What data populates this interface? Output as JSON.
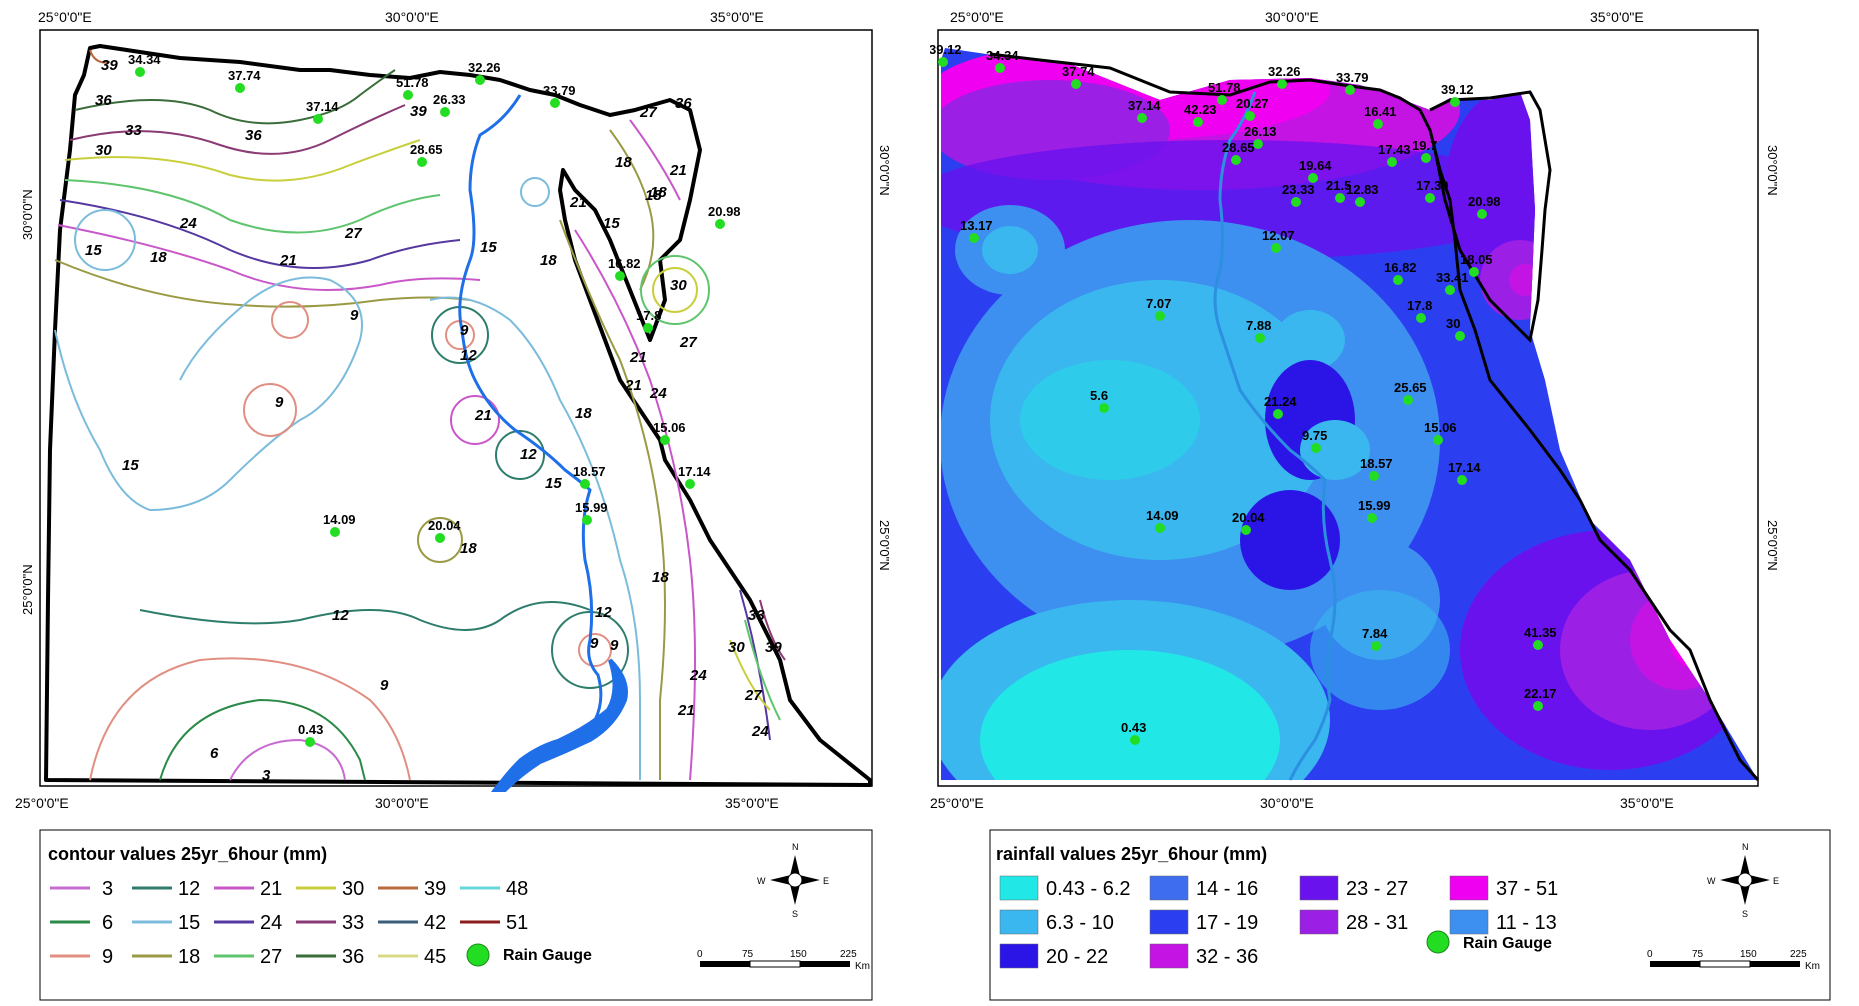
{
  "left_map": {
    "top_ticks": [
      "25°0'0\"E",
      "30°0'0\"E",
      "35°0'0\"E"
    ],
    "bottom_ticks": [
      "25°0'0\"E",
      "30°0'0\"E",
      "35°0'0\"E"
    ],
    "side_ticks": [
      "30°0'0\"N",
      "25°0'0\"N"
    ],
    "station_labels": [
      {
        "text": "34.34"
      },
      {
        "text": "37.74"
      },
      {
        "text": "37.14"
      },
      {
        "text": "51.78"
      },
      {
        "text": "32.26"
      },
      {
        "text": "33.79"
      },
      {
        "text": "26.33"
      },
      {
        "text": "28.65"
      },
      {
        "text": "20.98"
      },
      {
        "text": "16.82"
      },
      {
        "text": "17.8"
      },
      {
        "text": "15.06"
      },
      {
        "text": "17.14"
      },
      {
        "text": "18.57"
      },
      {
        "text": "15.99"
      },
      {
        "text": "14.09"
      },
      {
        "text": "20.04"
      },
      {
        "text": "0.43"
      }
    ],
    "contour_labels": [
      {
        "text": "39"
      },
      {
        "text": "36"
      },
      {
        "text": "33"
      },
      {
        "text": "30"
      },
      {
        "text": "36"
      },
      {
        "text": "39"
      },
      {
        "text": "27"
      },
      {
        "text": "24"
      },
      {
        "text": "21"
      },
      {
        "text": "18"
      },
      {
        "text": "15"
      },
      {
        "text": "18"
      },
      {
        "text": "15"
      },
      {
        "text": "9"
      },
      {
        "text": "9"
      },
      {
        "text": "12"
      },
      {
        "text": "21"
      },
      {
        "text": "9"
      },
      {
        "text": "9"
      },
      {
        "text": "15"
      },
      {
        "text": "12"
      },
      {
        "text": "15"
      },
      {
        "text": "18"
      },
      {
        "text": "18"
      },
      {
        "text": "12"
      },
      {
        "text": "12"
      },
      {
        "text": "9"
      },
      {
        "text": "9"
      },
      {
        "text": "6"
      },
      {
        "text": "3"
      },
      {
        "text": "21"
      },
      {
        "text": "15"
      },
      {
        "text": "18"
      },
      {
        "text": "18"
      },
      {
        "text": "27"
      },
      {
        "text": "36"
      },
      {
        "text": "21"
      },
      {
        "text": "18"
      },
      {
        "text": "21"
      },
      {
        "text": "30"
      },
      {
        "text": "27"
      },
      {
        "text": "21"
      },
      {
        "text": "24"
      },
      {
        "text": "18"
      },
      {
        "text": "33"
      },
      {
        "text": "30"
      },
      {
        "text": "39"
      },
      {
        "text": "27"
      },
      {
        "text": "24"
      },
      {
        "text": "21"
      },
      {
        "text": "24"
      }
    ]
  },
  "right_map": {
    "top_ticks": [
      "25°0'0\"E",
      "30°0'0\"E",
      "35°0'0\"E"
    ],
    "bottom_ticks": [
      "25°0'0\"E",
      "30°0'0\"E",
      "35°0'0\"E"
    ],
    "side_ticks": [
      "30°0'0\"N",
      "25°0'0\"N"
    ],
    "station_labels": [
      {
        "text": "39.12"
      },
      {
        "text": "34.34"
      },
      {
        "text": "37.74"
      },
      {
        "text": "37.14"
      },
      {
        "text": "42.23"
      },
      {
        "text": "51.78"
      },
      {
        "text": "32.26"
      },
      {
        "text": "20.27"
      },
      {
        "text": "26.13"
      },
      {
        "text": "28.65"
      },
      {
        "text": "33.79"
      },
      {
        "text": "16.41"
      },
      {
        "text": "39.12"
      },
      {
        "text": "17.43"
      },
      {
        "text": "19.7"
      },
      {
        "text": "17.39"
      },
      {
        "text": "19.64"
      },
      {
        "text": "23.33"
      },
      {
        "text": "21.5"
      },
      {
        "text": "12.83"
      },
      {
        "text": "20.98"
      },
      {
        "text": "13.17"
      },
      {
        "text": "12.07"
      },
      {
        "text": "16.82"
      },
      {
        "text": "33.41"
      },
      {
        "text": "18.05"
      },
      {
        "text": "17.8"
      },
      {
        "text": "30"
      },
      {
        "text": "7.07"
      },
      {
        "text": "7.88"
      },
      {
        "text": "25.65"
      },
      {
        "text": "5.6"
      },
      {
        "text": "21.24"
      },
      {
        "text": "15.06"
      },
      {
        "text": "9.75"
      },
      {
        "text": "18.57"
      },
      {
        "text": "17.14"
      },
      {
        "text": "14.09"
      },
      {
        "text": "20.04"
      },
      {
        "text": "15.99"
      },
      {
        "text": "7.84"
      },
      {
        "text": "41.35"
      },
      {
        "text": "0.43"
      },
      {
        "text": "22.17"
      }
    ]
  },
  "left_legend": {
    "title": "contour values 25yr_6hour (mm)",
    "items": [
      {
        "label": "3",
        "color": "#c86bd1"
      },
      {
        "label": "12",
        "color": "#2e7d6c"
      },
      {
        "label": "21",
        "color": "#c957c9"
      },
      {
        "label": "30",
        "color": "#c9cf3c"
      },
      {
        "label": "39",
        "color": "#b86a3e"
      },
      {
        "label": "48",
        "color": "#67d8d8"
      },
      {
        "label": "6",
        "color": "#2b8a48"
      },
      {
        "label": "15",
        "color": "#7bbcdc"
      },
      {
        "label": "24",
        "color": "#5538a0"
      },
      {
        "label": "33",
        "color": "#8a3a74"
      },
      {
        "label": "42",
        "color": "#3a5d7a"
      },
      {
        "label": "51",
        "color": "#8b1d1d"
      },
      {
        "label": "9",
        "color": "#e08f82"
      },
      {
        "label": "18",
        "color": "#9a9a45"
      },
      {
        "label": "27",
        "color": "#5fc46e"
      },
      {
        "label": "36",
        "color": "#3a6d3a"
      },
      {
        "label": "45",
        "color": "#d7d986"
      }
    ],
    "gauge_label": "Rain Gauge",
    "gauge_color": "#22dd22"
  },
  "right_legend": {
    "title": "rainfall values 25yr_6hour (mm)",
    "items": [
      {
        "label": "0.43 - 6.2",
        "color": "#21e8e6"
      },
      {
        "label": "14 - 16",
        "color": "#3f6df0"
      },
      {
        "label": "23 - 27",
        "color": "#6a12ee"
      },
      {
        "label": "37 - 51",
        "color": "#f000f0"
      },
      {
        "label": "6.3 - 10",
        "color": "#3ab7ee"
      },
      {
        "label": "17 - 19",
        "color": "#2c3ff0"
      },
      {
        "label": "28 - 31",
        "color": "#9b1fe5"
      },
      {
        "label": "11 - 13",
        "color": "#3d8ff0"
      },
      {
        "label": "20 - 22",
        "color": "#2a15e6"
      },
      {
        "label": "32 - 36",
        "color": "#c414e3"
      }
    ],
    "gauge_label": "Rain Gauge",
    "gauge_color": "#22dd22"
  },
  "compass": {
    "n": "N",
    "s": "S",
    "e": "E",
    "w": "W"
  },
  "scale_bar": {
    "ticks": [
      "0",
      "75",
      "150",
      "225"
    ],
    "unit": "Km"
  }
}
